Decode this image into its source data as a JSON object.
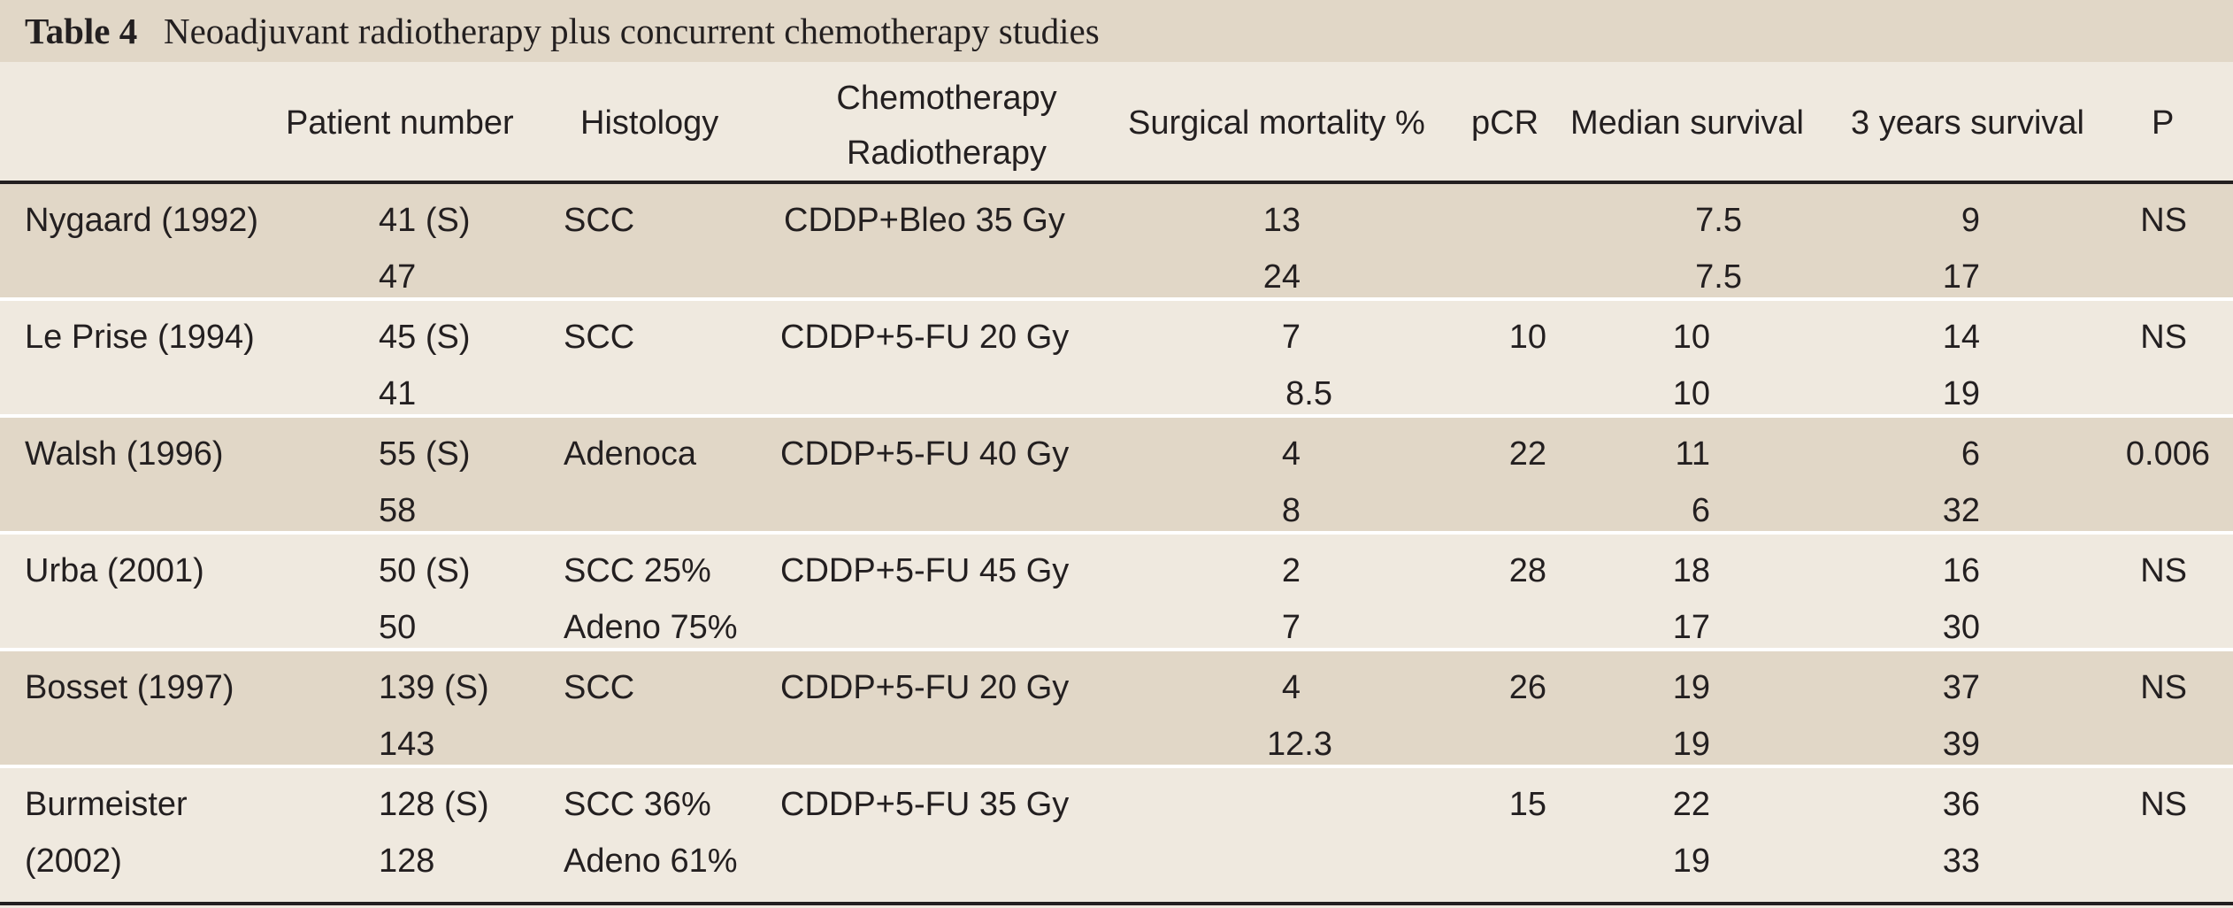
{
  "table": {
    "label": "Table 4",
    "title": "Neoadjuvant radiotherapy plus concurrent chemotherapy studies",
    "headers": {
      "patient_number": "Patient number",
      "histology": "Histology",
      "chemo_line1": "Chemotherapy",
      "chemo_line2": "Radiotherapy",
      "surgical_mortality": "Surgical mortality %",
      "pcr": "pCR",
      "median_survival": "Median survival",
      "three_year_survival": "3 years survival",
      "p": "P"
    },
    "rows": [
      {
        "study_line1": "Nygaard (1992)",
        "study_line2": "",
        "patients_1": "41 (S)",
        "patients_2": "47",
        "histology_1": "SCC",
        "histology_2": "",
        "chemo_radio": "CDDP+Bleo 35 Gy",
        "mortality_1": "13",
        "mortality_2": "24",
        "pcr": "",
        "median_1": "7.5",
        "median_2": "7.5",
        "surv3_1": "9",
        "surv3_2": "17",
        "p": "NS"
      },
      {
        "study_line1": "Le Prise (1994)",
        "study_line2": "",
        "patients_1": "45 (S)",
        "patients_2": "41",
        "histology_1": "SCC",
        "histology_2": "",
        "chemo_radio": "CDDP+5-FU 20 Gy",
        "mortality_1": "7",
        "mortality_2": "8.5",
        "pcr": "10",
        "median_1": "10",
        "median_2": "10",
        "surv3_1": "14",
        "surv3_2": "19",
        "p": "NS"
      },
      {
        "study_line1": "Walsh (1996)",
        "study_line2": "",
        "patients_1": "55 (S)",
        "patients_2": "58",
        "histology_1": "Adenoca",
        "histology_2": "",
        "chemo_radio": "CDDP+5-FU 40 Gy",
        "mortality_1": "4",
        "mortality_2": "8",
        "pcr": "22",
        "median_1": "11",
        "median_2": "6",
        "surv3_1": "6",
        "surv3_2": "32",
        "p": "0.006"
      },
      {
        "study_line1": "Urba (2001)",
        "study_line2": "",
        "patients_1": "50 (S)",
        "patients_2": "50",
        "histology_1": "SCC 25%",
        "histology_2": "Adeno 75%",
        "chemo_radio": "CDDP+5-FU 45 Gy",
        "mortality_1": "2",
        "mortality_2": "7",
        "pcr": "28",
        "median_1": "18",
        "median_2": "17",
        "surv3_1": "16",
        "surv3_2": "30",
        "p": "NS"
      },
      {
        "study_line1": "Bosset (1997)",
        "study_line2": "",
        "patients_1": "139 (S)",
        "patients_2": "143",
        "histology_1": "SCC",
        "histology_2": "",
        "chemo_radio": "CDDP+5-FU 20 Gy",
        "mortality_1": "4",
        "mortality_2": "12.3",
        "pcr": "26",
        "median_1": "19",
        "median_2": "19",
        "surv3_1": "37",
        "surv3_2": "39",
        "p": "NS"
      },
      {
        "study_line1": "Burmeister",
        "study_line2": "(2002)",
        "patients_1": "128 (S)",
        "patients_2": "128",
        "histology_1": "SCC 36%",
        "histology_2": "Adeno 61%",
        "chemo_radio": "CDDP+5-FU 35 Gy",
        "mortality_1": "",
        "mortality_2": "",
        "pcr": "15",
        "median_1": "22",
        "median_2": "19",
        "surv3_1": "36",
        "surv3_2": "33",
        "p": "NS"
      }
    ]
  },
  "colors": {
    "band": "#e1d7c7",
    "page": "#efe9df",
    "text": "#231f20",
    "separator": "#ffffff"
  }
}
